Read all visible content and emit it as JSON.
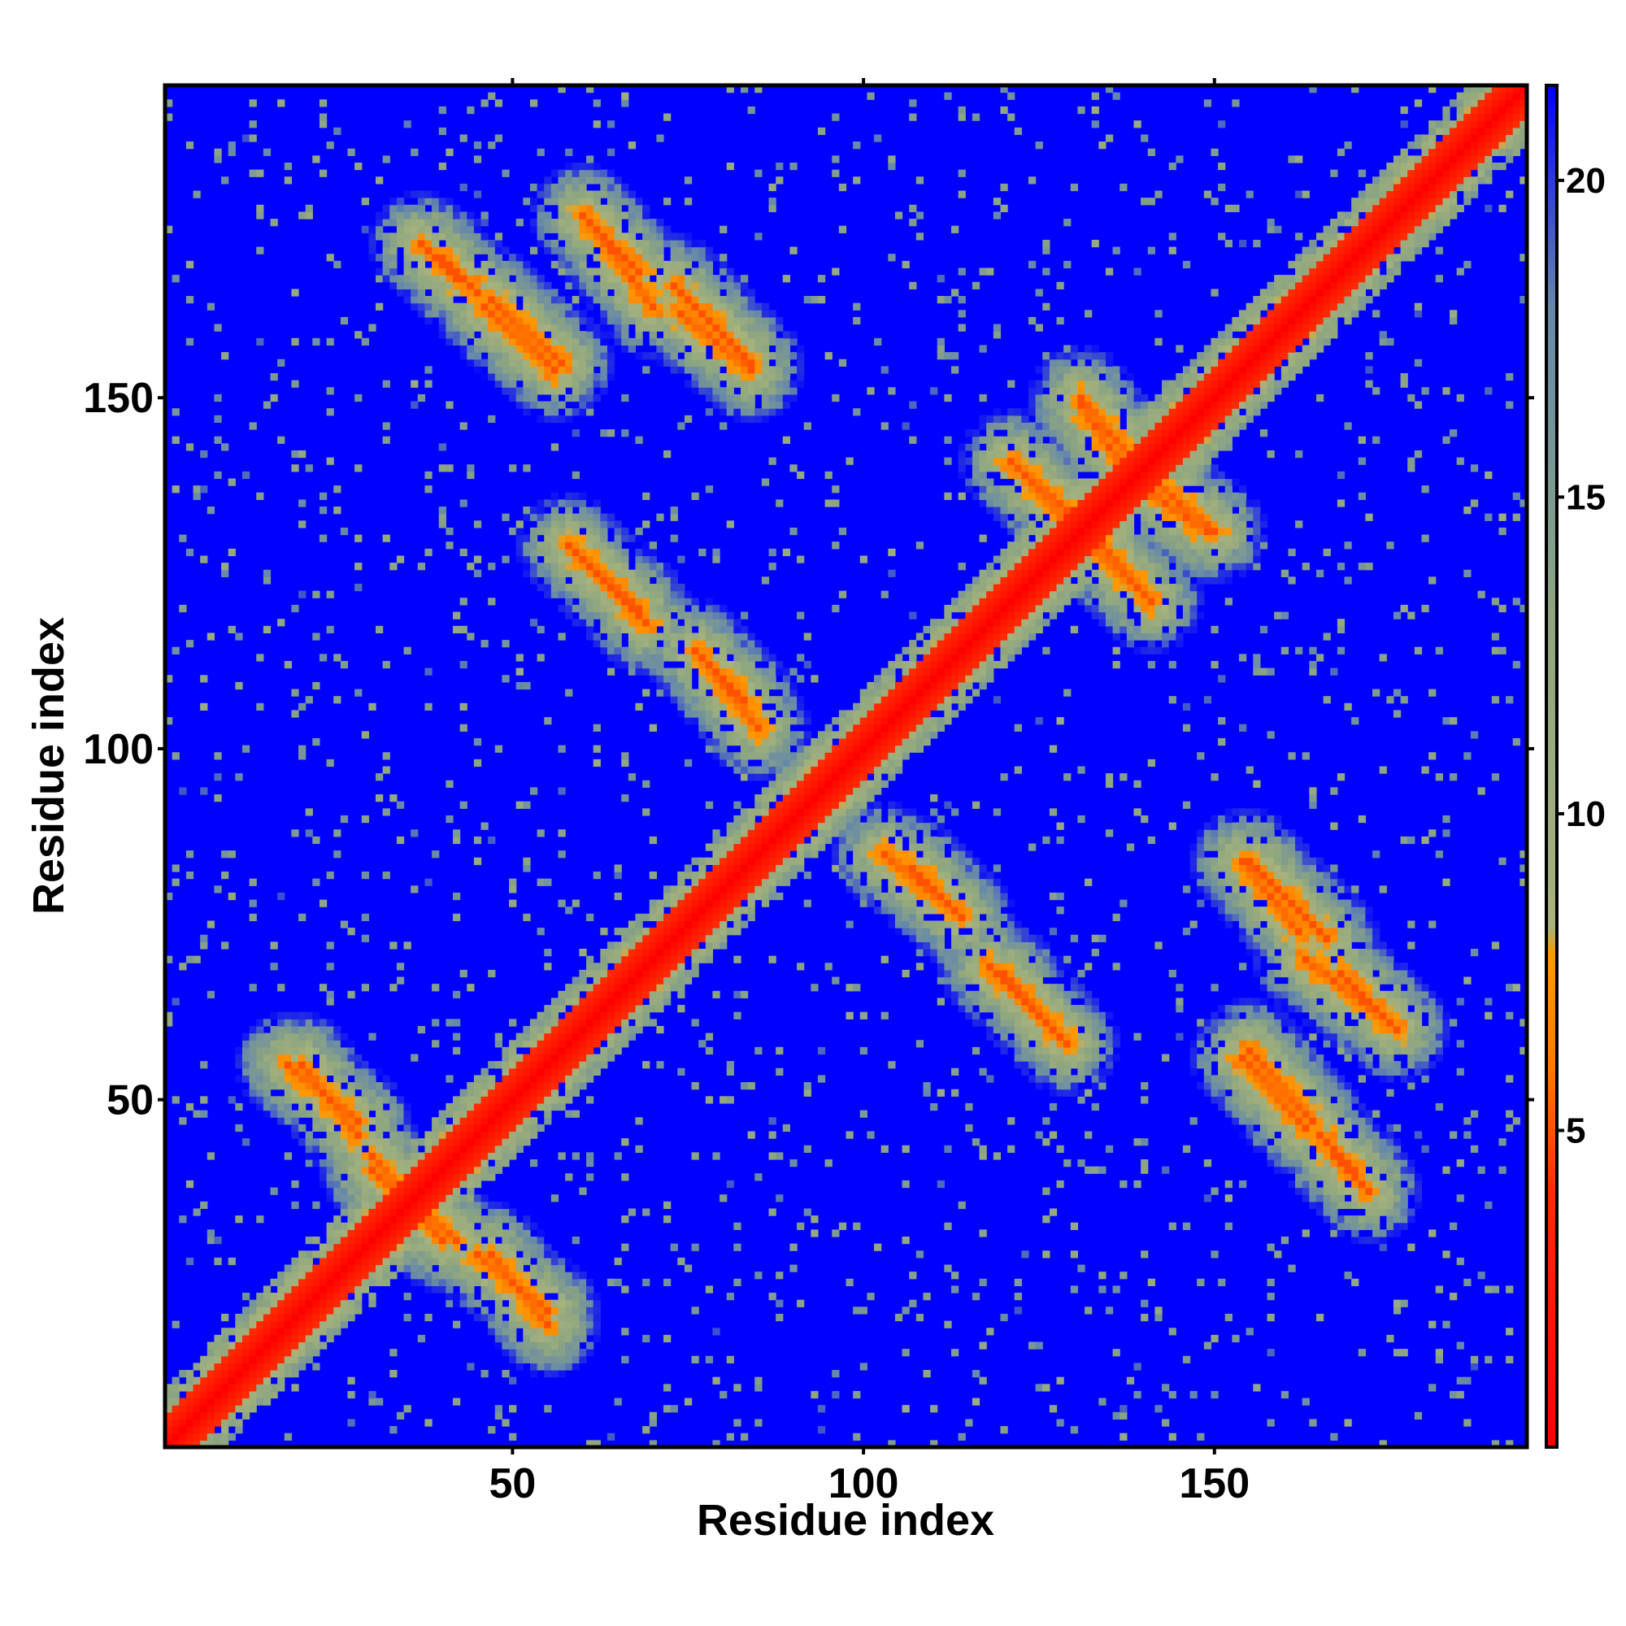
{
  "chart_data": {
    "type": "heatmap",
    "title": "",
    "xlabel": "Residue index",
    "ylabel": "Residue index",
    "n_residues": 194,
    "x_range": [
      1,
      194
    ],
    "y_range": [
      1,
      194
    ],
    "x_ticks": [
      50,
      100,
      150
    ],
    "y_ticks": [
      50,
      100,
      150
    ],
    "x_tick_labels": [
      "50",
      "100",
      "150"
    ],
    "y_tick_labels": [
      "50",
      "100",
      "150"
    ],
    "colorbar": {
      "range": [
        0,
        21.5
      ],
      "ticks": [
        5,
        10,
        15,
        20
      ],
      "tick_labels": [
        "5",
        "10",
        "15",
        "20"
      ],
      "stops": [
        {
          "value": 0,
          "color": "#ff0000"
        },
        {
          "value": 4,
          "color": "#ff2a00"
        },
        {
          "value": 6,
          "color": "#ff7a00"
        },
        {
          "value": 7.8,
          "color": "#ff9900"
        },
        {
          "value": 8.2,
          "color": "#a8b27c"
        },
        {
          "value": 13,
          "color": "#8ea680"
        },
        {
          "value": 18,
          "color": "#6688aa"
        },
        {
          "value": 21.5,
          "color": "#0000ff"
        }
      ]
    },
    "background_color": "#0000ff",
    "description_features": {
      "diagonal": "distance 0-4 along i=j",
      "contact_bands": [
        {
          "i1": 20,
          "j1": 55,
          "i2": 28,
          "j2": 45
        },
        {
          "i1": 30,
          "j1": 42,
          "i2": 40,
          "j2": 30
        },
        {
          "i1": 47,
          "j1": 28,
          "i2": 55,
          "j2": 18
        },
        {
          "i1": 37,
          "j1": 172,
          "i2": 42,
          "j2": 167
        },
        {
          "i1": 47,
          "j1": 164,
          "i2": 57,
          "j2": 155
        },
        {
          "i1": 60,
          "j1": 176,
          "i2": 68,
          "j2": 168
        },
        {
          "i1": 73,
          "j1": 166,
          "i2": 84,
          "j2": 155
        },
        {
          "i1": 59,
          "j1": 128,
          "i2": 69,
          "j2": 118
        },
        {
          "i1": 77,
          "j1": 113,
          "i2": 85,
          "j2": 103
        },
        {
          "i1": 107,
          "j1": 83,
          "i2": 114,
          "j2": 76
        },
        {
          "i1": 120,
          "j1": 68,
          "i2": 129,
          "j2": 58
        },
        {
          "i1": 154,
          "j1": 84,
          "i2": 162,
          "j2": 74
        },
        {
          "i1": 163,
          "j1": 70,
          "i2": 175,
          "j2": 61
        },
        {
          "i1": 154,
          "j1": 56,
          "i2": 163,
          "j2": 46
        },
        {
          "i1": 165,
          "j1": 45,
          "i2": 170,
          "j2": 40
        },
        {
          "i1": 123,
          "j1": 139,
          "i2": 132,
          "j2": 129
        },
        {
          "i1": 131,
          "j1": 150,
          "i2": 140,
          "j2": 139
        },
        {
          "i1": 140,
          "j1": 137,
          "i2": 149,
          "j2": 131
        },
        {
          "i1": 134,
          "j1": 129,
          "i2": 141,
          "j2": 121
        }
      ]
    }
  }
}
